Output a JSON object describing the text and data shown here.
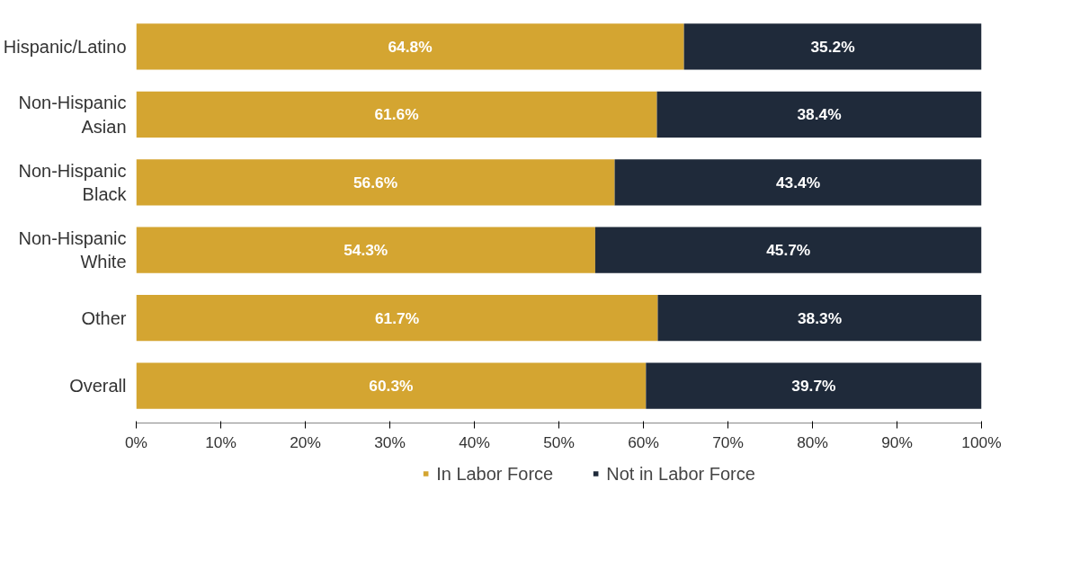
{
  "chart_data": {
    "type": "bar",
    "orientation": "horizontal",
    "stacked": true,
    "categories": [
      "Hispanic/Latino",
      "Non-Hispanic Asian",
      "Non-Hispanic Black",
      "Non-Hispanic White",
      "Other",
      "Overall"
    ],
    "series": [
      {
        "name": "In Labor Force",
        "color": "#d4a531",
        "values": [
          64.8,
          61.6,
          56.6,
          54.3,
          61.7,
          60.3
        ]
      },
      {
        "name": "Not in Labor Force",
        "color": "#1f2a3a",
        "values": [
          35.2,
          38.4,
          43.4,
          45.7,
          38.3,
          39.7
        ]
      }
    ],
    "value_labels": [
      [
        "64.8%",
        "61.6%",
        "56.6%",
        "54.3%",
        "61.7%",
        "60.3%"
      ],
      [
        "35.2%",
        "38.4%",
        "43.4%",
        "45.7%",
        "38.3%",
        "39.7%"
      ]
    ],
    "xlim": [
      0,
      100
    ],
    "xticks": [
      {
        "value": 0,
        "label": "0%"
      },
      {
        "value": 10,
        "label": "10%"
      },
      {
        "value": 20,
        "label": "20%"
      },
      {
        "value": 30,
        "label": "30%"
      },
      {
        "value": 40,
        "label": "40%"
      },
      {
        "value": 50,
        "label": "50%"
      },
      {
        "value": 60,
        "label": "60%"
      },
      {
        "value": 70,
        "label": "70%"
      },
      {
        "value": 80,
        "label": "80%"
      },
      {
        "value": 90,
        "label": "90%"
      },
      {
        "value": 100,
        "label": "100%"
      }
    ],
    "grid": false,
    "legend": "bottom"
  }
}
